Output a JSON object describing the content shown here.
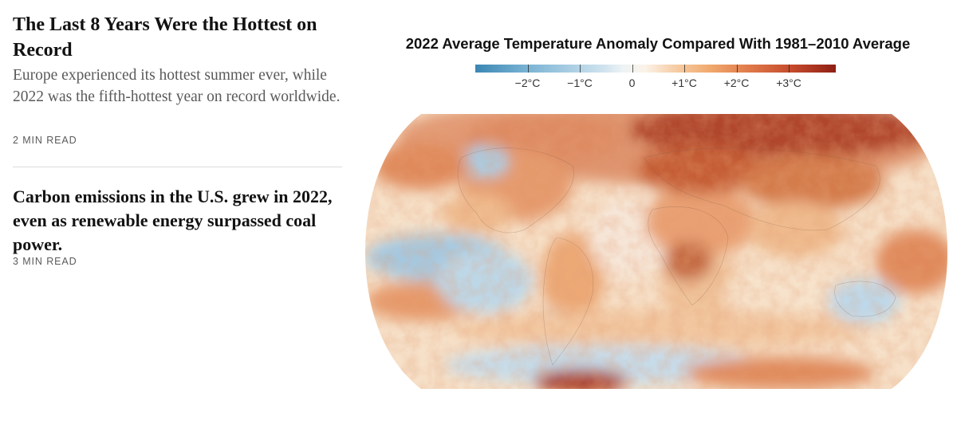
{
  "articles": [
    {
      "headline": "The Last 8 Years Were the Hottest on Record",
      "summary": "Europe experienced its hottest summer ever, while 2022 was the fifth-hottest year on record worldwide.",
      "read_time": "2 MIN READ"
    },
    {
      "headline": "Carbon emissions in the U.S. grew in 2022, even as renewable energy surpassed coal power.",
      "read_time": "3 MIN READ"
    }
  ],
  "map": {
    "title": "2022 Average Temperature Anomaly Compared With 1981–2010 Average",
    "legend": {
      "ticks": [
        {
          "value": -2,
          "label": "−2°C"
        },
        {
          "value": -1,
          "label": "−1°C"
        },
        {
          "value": 0,
          "label": "0"
        },
        {
          "value": 1,
          "label": "+1°C"
        },
        {
          "value": 2,
          "label": "+2°C"
        },
        {
          "value": 3,
          "label": "+3°C"
        }
      ],
      "range": [
        -3,
        3.9
      ],
      "colors": {
        "cold": "#3a86b3",
        "neutral": "#f7f1ea",
        "warm": "#e0794a",
        "hot": "#8f1f14"
      }
    }
  }
}
